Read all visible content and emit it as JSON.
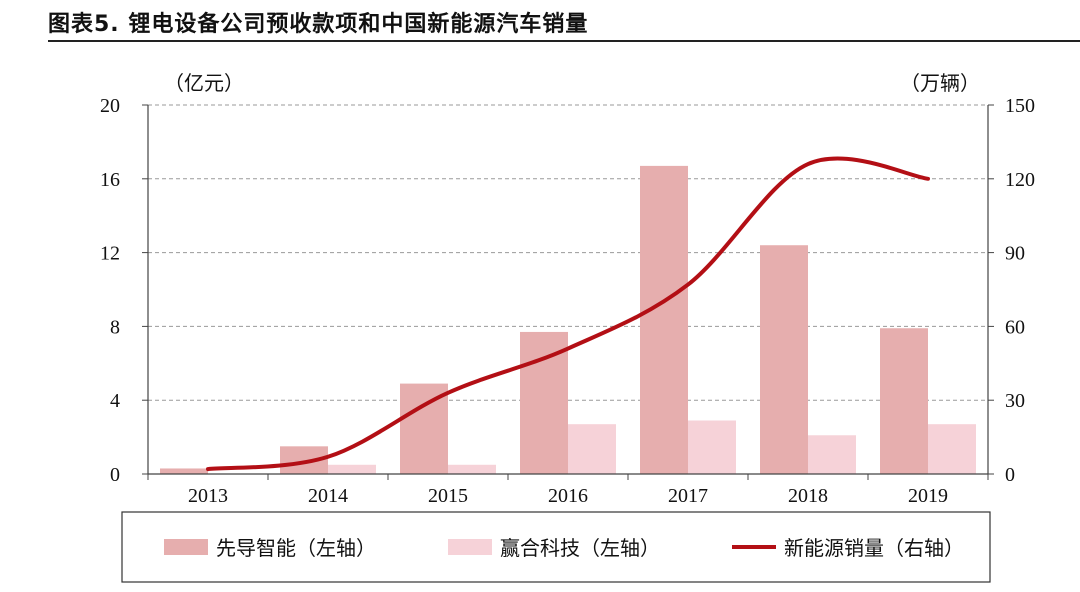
{
  "header": {
    "title": "图表5. 锂电设备公司预收款项和中国新能源汽车销量"
  },
  "chart_data": {
    "type": "bar",
    "categories": [
      "2013",
      "2014",
      "2015",
      "2016",
      "2017",
      "2018",
      "2019"
    ],
    "series": [
      {
        "name": "先导智能（左轴）",
        "kind": "bar",
        "axis": "left",
        "color": "#e6aeae",
        "values": [
          0.3,
          1.5,
          4.9,
          7.7,
          16.7,
          12.4,
          7.9
        ]
      },
      {
        "name": "赢合科技（左轴）",
        "kind": "bar",
        "axis": "left",
        "color": "#f6d2d8",
        "values": [
          0.0,
          0.5,
          0.5,
          2.7,
          2.9,
          2.1,
          2.7
        ]
      },
      {
        "name": "新能源销量（右轴）",
        "kind": "line",
        "axis": "right",
        "color": "#b30f15",
        "values": [
          2,
          7,
          33,
          51,
          77,
          126,
          120
        ]
      }
    ],
    "left_axis": {
      "label": "（亿元）",
      "min": 0,
      "max": 20,
      "ticks": [
        0,
        4,
        8,
        12,
        16,
        20
      ]
    },
    "right_axis": {
      "label": "（万辆）",
      "min": 0,
      "max": 150,
      "ticks": [
        0,
        30,
        60,
        90,
        120,
        150
      ]
    },
    "grid": "horizontal dashed",
    "legend_position": "bottom"
  },
  "colors": {
    "axis": "#444444",
    "grid": "#9a9a9a"
  }
}
